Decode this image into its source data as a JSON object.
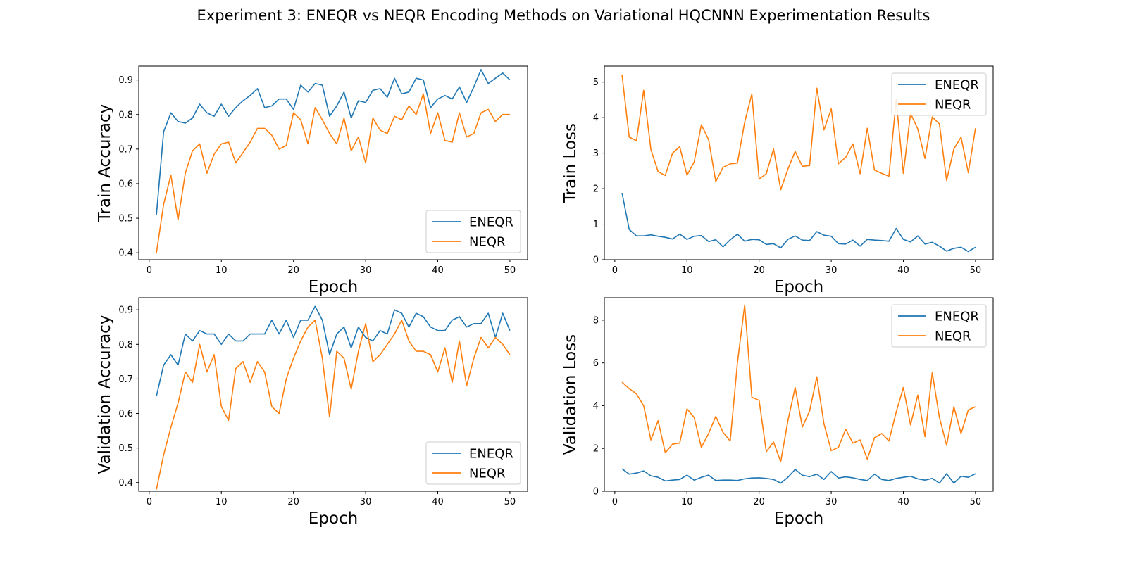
{
  "figure_title": "Experiment 3: ENEQR vs NEQR Encoding Methods on Variational HQCNNN Experimentation Results",
  "colors": {
    "ENEQR": "#1f77b4",
    "NEQR": "#ff7f0e"
  },
  "chart_data": [
    {
      "type": "line",
      "xlabel": "Epoch",
      "ylabel": "Train Accuracy",
      "xlim": [
        1,
        50
      ],
      "ylim": [
        0.38,
        0.94
      ],
      "xticks": [
        0,
        10,
        20,
        30,
        40,
        50
      ],
      "yticks": [
        0.4,
        0.5,
        0.6,
        0.7,
        0.8,
        0.9
      ],
      "ytick_decimals": 1,
      "legend": "lower-right",
      "grid": false,
      "x": [
        1,
        2,
        3,
        4,
        5,
        6,
        7,
        8,
        9,
        10,
        11,
        12,
        13,
        14,
        15,
        16,
        17,
        18,
        19,
        20,
        21,
        22,
        23,
        24,
        25,
        26,
        27,
        28,
        29,
        30,
        31,
        32,
        33,
        34,
        35,
        36,
        37,
        38,
        39,
        40,
        41,
        42,
        43,
        44,
        45,
        46,
        47,
        48,
        49,
        50
      ],
      "series": [
        {
          "name": "ENEQR",
          "values": [
            0.51,
            0.75,
            0.805,
            0.78,
            0.775,
            0.79,
            0.83,
            0.805,
            0.795,
            0.83,
            0.795,
            0.82,
            0.84,
            0.855,
            0.875,
            0.82,
            0.825,
            0.845,
            0.845,
            0.815,
            0.885,
            0.865,
            0.89,
            0.885,
            0.795,
            0.825,
            0.865,
            0.79,
            0.84,
            0.835,
            0.87,
            0.875,
            0.85,
            0.905,
            0.86,
            0.865,
            0.905,
            0.9,
            0.82,
            0.845,
            0.855,
            0.845,
            0.88,
            0.835,
            0.88,
            0.93,
            0.89,
            0.905,
            0.92,
            0.9
          ]
        },
        {
          "name": "NEQR",
          "values": [
            0.4,
            0.54,
            0.625,
            0.495,
            0.63,
            0.695,
            0.715,
            0.63,
            0.685,
            0.715,
            0.72,
            0.66,
            0.69,
            0.72,
            0.76,
            0.76,
            0.74,
            0.7,
            0.71,
            0.805,
            0.785,
            0.715,
            0.82,
            0.785,
            0.745,
            0.715,
            0.79,
            0.695,
            0.735,
            0.66,
            0.79,
            0.755,
            0.745,
            0.795,
            0.785,
            0.825,
            0.8,
            0.86,
            0.745,
            0.805,
            0.725,
            0.72,
            0.805,
            0.735,
            0.745,
            0.805,
            0.815,
            0.78,
            0.8,
            0.8
          ]
        }
      ]
    },
    {
      "type": "line",
      "xlabel": "Epoch",
      "ylabel": "Train Loss",
      "xlim": [
        1,
        50
      ],
      "ylim": [
        0,
        5.45
      ],
      "xticks": [
        0,
        10,
        20,
        30,
        40,
        50
      ],
      "yticks": [
        0,
        1,
        2,
        3,
        4,
        5
      ],
      "ytick_decimals": 0,
      "legend": "top-right",
      "grid": false,
      "x": [
        1,
        2,
        3,
        4,
        5,
        6,
        7,
        8,
        9,
        10,
        11,
        12,
        13,
        14,
        15,
        16,
        17,
        18,
        19,
        20,
        21,
        22,
        23,
        24,
        25,
        26,
        27,
        28,
        29,
        30,
        31,
        32,
        33,
        34,
        35,
        36,
        37,
        38,
        39,
        40,
        41,
        42,
        43,
        44,
        45,
        46,
        47,
        48,
        49,
        50
      ],
      "series": [
        {
          "name": "ENEQR",
          "values": [
            1.88,
            0.85,
            0.67,
            0.67,
            0.7,
            0.66,
            0.63,
            0.58,
            0.72,
            0.57,
            0.66,
            0.68,
            0.51,
            0.56,
            0.36,
            0.56,
            0.72,
            0.52,
            0.57,
            0.56,
            0.43,
            0.45,
            0.33,
            0.57,
            0.67,
            0.55,
            0.54,
            0.79,
            0.69,
            0.66,
            0.45,
            0.44,
            0.55,
            0.38,
            0.57,
            0.55,
            0.54,
            0.52,
            0.88,
            0.57,
            0.5,
            0.67,
            0.44,
            0.49,
            0.38,
            0.24,
            0.32,
            0.35,
            0.23,
            0.35
          ]
        },
        {
          "name": "NEQR",
          "values": [
            5.2,
            3.45,
            3.35,
            4.77,
            3.1,
            2.48,
            2.37,
            3.0,
            3.18,
            2.38,
            2.75,
            3.8,
            3.38,
            2.2,
            2.6,
            2.7,
            2.72,
            3.87,
            4.67,
            2.27,
            2.42,
            3.12,
            1.97,
            2.55,
            3.05,
            2.63,
            2.65,
            4.83,
            3.65,
            4.25,
            2.7,
            2.88,
            3.26,
            2.42,
            3.7,
            2.52,
            2.43,
            2.35,
            4.5,
            2.43,
            4.12,
            3.68,
            2.85,
            4.02,
            3.82,
            2.23,
            3.12,
            3.45,
            2.45,
            3.7
          ]
        }
      ]
    },
    {
      "type": "line",
      "xlabel": "Epoch",
      "ylabel": "Validation Accuracy",
      "xlim": [
        1,
        50
      ],
      "ylim": [
        0.375,
        0.935
      ],
      "xticks": [
        0,
        10,
        20,
        30,
        40,
        50
      ],
      "yticks": [
        0.4,
        0.5,
        0.6,
        0.7,
        0.8,
        0.9
      ],
      "ytick_decimals": 1,
      "legend": "lower-right",
      "grid": false,
      "x": [
        1,
        2,
        3,
        4,
        5,
        6,
        7,
        8,
        9,
        10,
        11,
        12,
        13,
        14,
        15,
        16,
        17,
        18,
        19,
        20,
        21,
        22,
        23,
        24,
        25,
        26,
        27,
        28,
        29,
        30,
        31,
        32,
        33,
        34,
        35,
        36,
        37,
        38,
        39,
        40,
        41,
        42,
        43,
        44,
        45,
        46,
        47,
        48,
        49,
        50
      ],
      "series": [
        {
          "name": "ENEQR",
          "values": [
            0.65,
            0.74,
            0.77,
            0.74,
            0.83,
            0.81,
            0.84,
            0.83,
            0.83,
            0.8,
            0.83,
            0.81,
            0.81,
            0.83,
            0.83,
            0.83,
            0.87,
            0.83,
            0.87,
            0.82,
            0.87,
            0.87,
            0.91,
            0.87,
            0.77,
            0.83,
            0.85,
            0.79,
            0.85,
            0.82,
            0.81,
            0.84,
            0.83,
            0.9,
            0.89,
            0.85,
            0.89,
            0.88,
            0.85,
            0.84,
            0.84,
            0.87,
            0.88,
            0.85,
            0.86,
            0.86,
            0.89,
            0.82,
            0.89,
            0.84
          ]
        },
        {
          "name": "NEQR",
          "values": [
            0.38,
            0.48,
            0.56,
            0.63,
            0.72,
            0.69,
            0.8,
            0.72,
            0.77,
            0.62,
            0.58,
            0.73,
            0.75,
            0.69,
            0.75,
            0.72,
            0.62,
            0.6,
            0.7,
            0.76,
            0.81,
            0.85,
            0.87,
            0.76,
            0.59,
            0.78,
            0.76,
            0.67,
            0.78,
            0.86,
            0.75,
            0.77,
            0.8,
            0.83,
            0.87,
            0.81,
            0.78,
            0.78,
            0.77,
            0.72,
            0.79,
            0.69,
            0.81,
            0.68,
            0.76,
            0.82,
            0.79,
            0.82,
            0.8,
            0.77
          ]
        }
      ]
    },
    {
      "type": "line",
      "xlabel": "Epoch",
      "ylabel": "Validation Loss",
      "xlim": [
        1,
        50
      ],
      "ylim": [
        0,
        9.05
      ],
      "xticks": [
        0,
        10,
        20,
        30,
        40,
        50
      ],
      "yticks": [
        0,
        2,
        4,
        6,
        8
      ],
      "ytick_decimals": 0,
      "legend": "top-right",
      "grid": false,
      "x": [
        1,
        2,
        3,
        4,
        5,
        6,
        7,
        8,
        9,
        10,
        11,
        12,
        13,
        14,
        15,
        16,
        17,
        18,
        19,
        20,
        21,
        22,
        23,
        24,
        25,
        26,
        27,
        28,
        29,
        30,
        31,
        32,
        33,
        34,
        35,
        36,
        37,
        38,
        39,
        40,
        41,
        42,
        43,
        44,
        45,
        46,
        47,
        48,
        49,
        50
      ],
      "series": [
        {
          "name": "ENEQR",
          "values": [
            1.05,
            0.8,
            0.85,
            0.95,
            0.72,
            0.65,
            0.48,
            0.52,
            0.55,
            0.75,
            0.52,
            0.65,
            0.75,
            0.5,
            0.52,
            0.52,
            0.5,
            0.58,
            0.62,
            0.63,
            0.6,
            0.55,
            0.38,
            0.65,
            1.02,
            0.75,
            0.68,
            0.8,
            0.55,
            0.92,
            0.62,
            0.67,
            0.63,
            0.55,
            0.5,
            0.8,
            0.55,
            0.5,
            0.6,
            0.65,
            0.7,
            0.58,
            0.52,
            0.6,
            0.38,
            0.82,
            0.38,
            0.7,
            0.65,
            0.82
          ]
        },
        {
          "name": "NEQR",
          "values": [
            5.1,
            4.8,
            4.55,
            4.0,
            2.4,
            3.3,
            1.8,
            2.2,
            2.25,
            3.85,
            3.45,
            2.05,
            2.7,
            3.5,
            2.75,
            2.35,
            6.0,
            8.7,
            4.4,
            4.25,
            1.85,
            2.3,
            1.38,
            3.3,
            4.85,
            3.0,
            3.75,
            5.35,
            3.15,
            1.9,
            2.05,
            2.9,
            2.25,
            2.4,
            1.5,
            2.5,
            2.7,
            2.35,
            3.7,
            4.85,
            3.1,
            4.5,
            2.55,
            5.55,
            3.45,
            2.15,
            3.95,
            2.7,
            3.8,
            3.95
          ]
        }
      ]
    }
  ]
}
